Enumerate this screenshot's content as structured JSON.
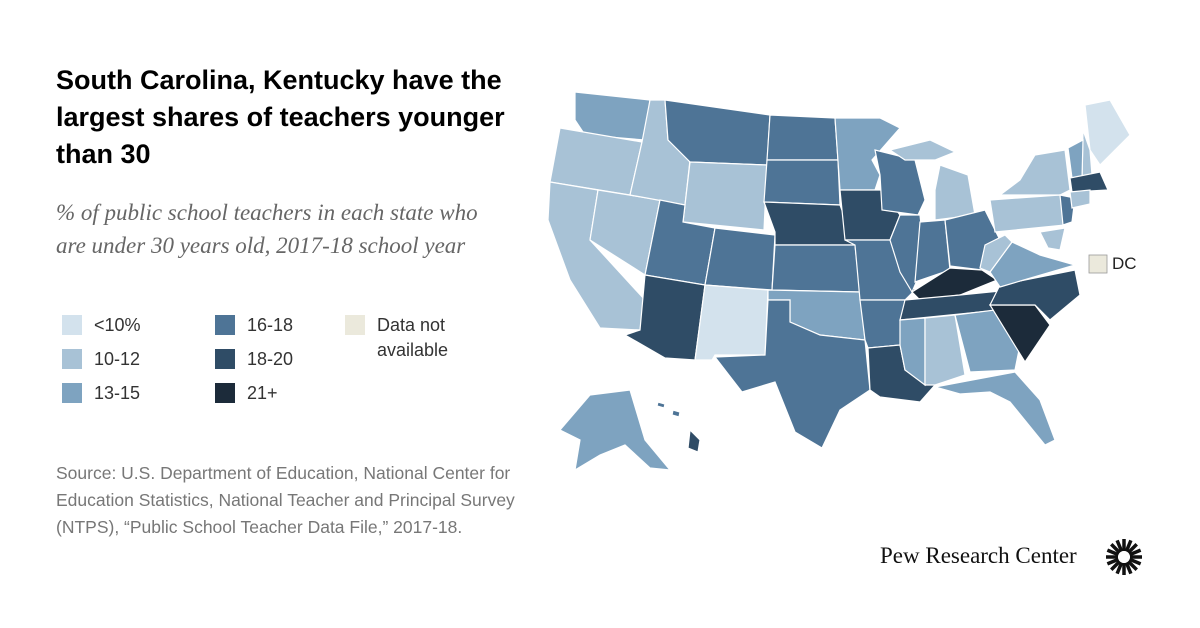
{
  "title": "South Carolina, Kentucky have the largest shares of teachers younger than 30",
  "subtitle": "% of public school teachers in each state who are under 30 years old, 2017-18 school year",
  "legend": [
    {
      "label": "<10%",
      "color": "#d3e2ed"
    },
    {
      "label": "10-12",
      "color": "#a8c2d6"
    },
    {
      "label": "13-15",
      "color": "#7ea3c0"
    },
    {
      "label": "16-18",
      "color": "#4e7496"
    },
    {
      "label": "18-20",
      "color": "#2f4c66"
    },
    {
      "label": "21+",
      "color": "#1c2b3a"
    },
    {
      "label": "Data not available",
      "color": "#ebe9dc"
    }
  ],
  "dc_label": "DC",
  "source": "Source: U.S. Department of Education, National Center for Education Statistics, National Teacher and Principal Survey (NTPS), “Public School Teacher Data File,” 2017-18.",
  "logo": "Pew Research Center"
}
